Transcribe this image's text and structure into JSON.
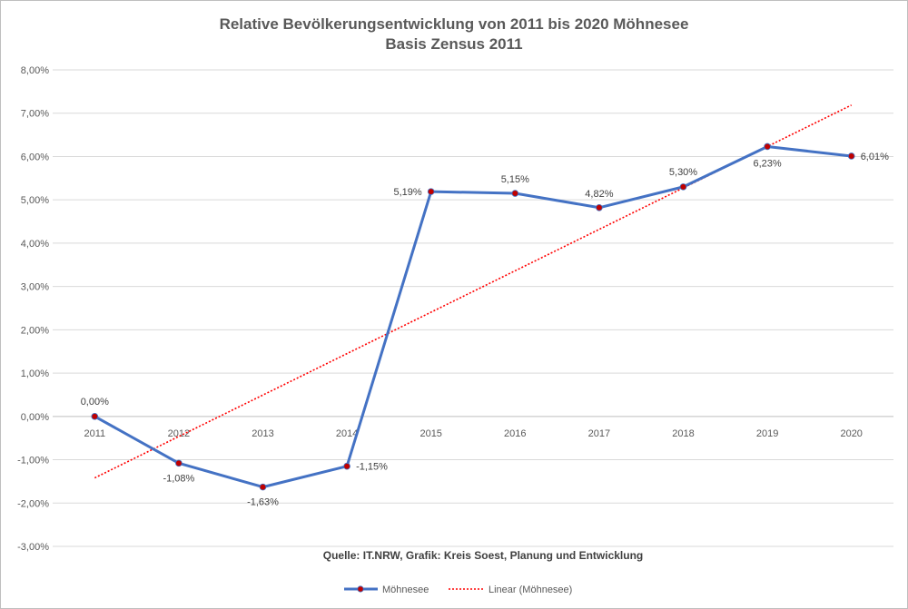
{
  "chart_data": {
    "type": "line",
    "title": "Relative Bevölkerungsentwicklung von 2011 bis 2020 Möhnesee",
    "subtitle": "Basis Zensus 2011",
    "categories": [
      "2011",
      "2012",
      "2013",
      "2014",
      "2015",
      "2016",
      "2017",
      "2018",
      "2019",
      "2020"
    ],
    "series": [
      {
        "name": "Möhnesee",
        "values": [
          0.0,
          -1.08,
          -1.63,
          -1.15,
          5.19,
          5.15,
          4.82,
          5.3,
          6.23,
          6.01
        ],
        "data_labels": [
          "0,00%",
          "-1,08%",
          "-1,63%",
          "-1,15%",
          "5,19%",
          "5,15%",
          "4,82%",
          "5,30%",
          "6,23%",
          "6,01%"
        ],
        "color": "#4472C4",
        "marker_color": "#C00000"
      }
    ],
    "trendline": {
      "name": "Linear (Möhnesee)",
      "type": "linear",
      "color": "#FF0000",
      "style": "dotted"
    },
    "ylim": [
      -3,
      8
    ],
    "yticks": [
      8,
      7,
      6,
      5,
      4,
      3,
      2,
      1,
      0,
      -1,
      -2,
      -3
    ],
    "ytick_labels": [
      "8,00%",
      "7,00%",
      "6,00%",
      "5,00%",
      "4,00%",
      "3,00%",
      "2,00%",
      "1,00%",
      "0,00%",
      "-1,00%",
      "-2,00%",
      "-3,00%"
    ],
    "grid": true,
    "legend_position": "bottom",
    "source_note": "Quelle: IT.NRW, Grafik: Kreis Soest, Planung und Entwicklung"
  }
}
